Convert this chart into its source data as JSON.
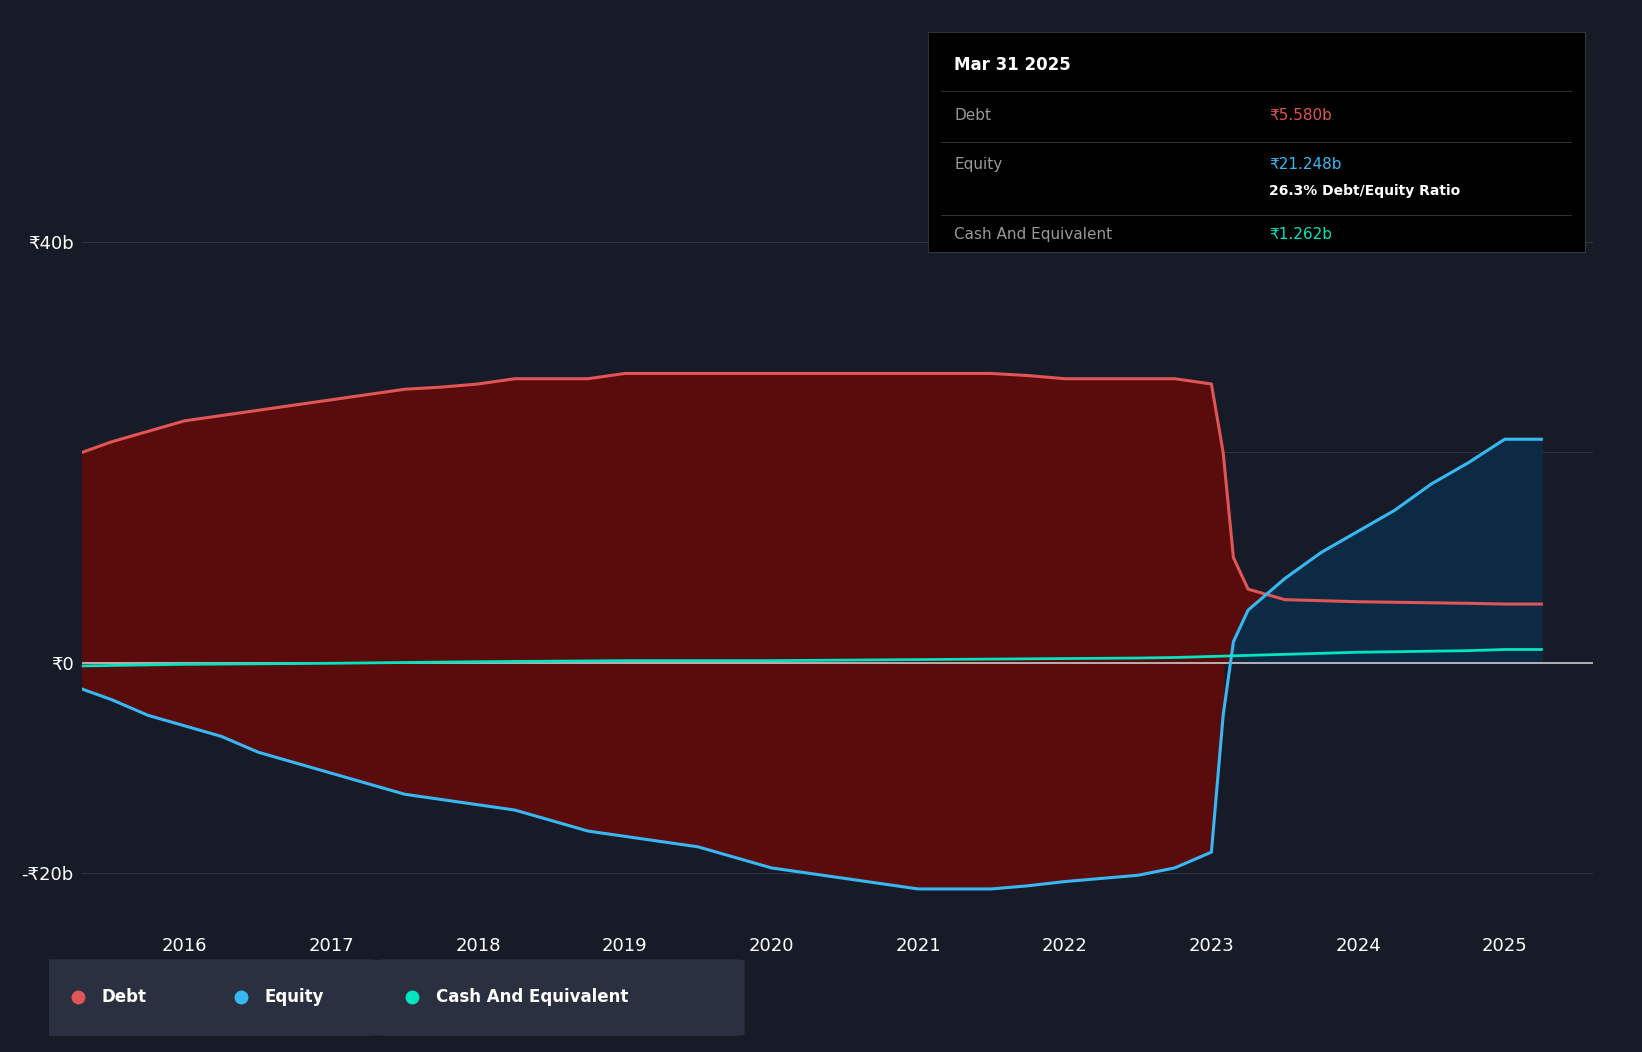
{
  "background_color": "#161b27",
  "plot_bg_color": "#161b27",
  "ylim": [
    -25000000000,
    47000000000
  ],
  "xlim_start": 2015.3,
  "xlim_end": 2025.6,
  "x_ticks": [
    2016,
    2017,
    2018,
    2019,
    2020,
    2021,
    2022,
    2023,
    2024,
    2025
  ],
  "y_ticks": [
    -20000000000,
    0,
    40000000000
  ],
  "y_tick_labels": [
    "-₹20b",
    "₹0",
    "₹40b"
  ],
  "debt_color": "#e05555",
  "equity_color": "#38b8f2",
  "cash_color": "#00e5c0",
  "debt_fill_color": "#5a0c0c",
  "equity_pos_fill_color": "#0d2a45",
  "grid_color": "#2a3444",
  "zero_line_color": "#cccccc",
  "tooltip_bg": "#000000",
  "tooltip_title": "Mar 31 2025",
  "tooltip_debt_label": "Debt",
  "tooltip_debt_value": "₹5.580b",
  "tooltip_debt_color": "#e05555",
  "tooltip_equity_label": "Equity",
  "tooltip_equity_value": "₹21.248b",
  "tooltip_equity_color": "#38b8f2",
  "tooltip_ratio": "26.3% Debt/Equity Ratio",
  "tooltip_cash_label": "Cash And Equivalent",
  "tooltip_cash_value": "₹1.262b",
  "tooltip_cash_color": "#00e5c0",
  "tooltip_sep_color": "#333333",
  "legend_items": [
    "Debt",
    "Equity",
    "Cash And Equivalent"
  ],
  "legend_colors": [
    "#e05555",
    "#38b8f2",
    "#00e5c0"
  ],
  "legend_bg": "#2a3040",
  "debt_data_x": [
    2015.3,
    2015.5,
    2015.75,
    2016.0,
    2016.25,
    2016.5,
    2016.75,
    2017.0,
    2017.25,
    2017.5,
    2017.75,
    2018.0,
    2018.25,
    2018.5,
    2018.75,
    2019.0,
    2019.25,
    2019.5,
    2019.75,
    2020.0,
    2020.25,
    2020.5,
    2020.75,
    2021.0,
    2021.25,
    2021.5,
    2021.75,
    2022.0,
    2022.25,
    2022.5,
    2022.75,
    2023.0,
    2023.08,
    2023.15,
    2023.25,
    2023.5,
    2023.75,
    2024.0,
    2024.25,
    2024.5,
    2024.75,
    2025.0,
    2025.25
  ],
  "debt_data_y": [
    20000000000.0,
    21000000000.0,
    22000000000.0,
    23000000000.0,
    23500000000.0,
    24000000000.0,
    24500000000.0,
    25000000000.0,
    25500000000.0,
    26000000000.0,
    26200000000.0,
    26500000000.0,
    27000000000.0,
    27000000000.0,
    27000000000.0,
    27500000000.0,
    27500000000.0,
    27500000000.0,
    27500000000.0,
    27500000000.0,
    27500000000.0,
    27500000000.0,
    27500000000.0,
    27500000000.0,
    27500000000.0,
    27500000000.0,
    27300000000.0,
    27000000000.0,
    27000000000.0,
    27000000000.0,
    27000000000.0,
    26500000000.0,
    20000000000.0,
    10000000000.0,
    7000000000.0,
    6000000000.0,
    5900000000.0,
    5800000000.0,
    5750000000.0,
    5700000000.0,
    5650000000.0,
    5580000000.0,
    5580000000.0
  ],
  "equity_data_x": [
    2015.3,
    2015.5,
    2015.75,
    2016.0,
    2016.25,
    2016.5,
    2016.75,
    2017.0,
    2017.25,
    2017.5,
    2017.75,
    2018.0,
    2018.25,
    2018.5,
    2018.75,
    2019.0,
    2019.25,
    2019.5,
    2019.75,
    2020.0,
    2020.25,
    2020.5,
    2020.75,
    2021.0,
    2021.25,
    2021.5,
    2021.75,
    2022.0,
    2022.25,
    2022.5,
    2022.75,
    2023.0,
    2023.08,
    2023.15,
    2023.25,
    2023.5,
    2023.75,
    2024.0,
    2024.25,
    2024.5,
    2024.75,
    2025.0,
    2025.25
  ],
  "equity_data_y": [
    -2500000000.0,
    -3500000000.0,
    -5000000000.0,
    -6000000000.0,
    -7000000000.0,
    -8500000000.0,
    -9500000000.0,
    -10500000000.0,
    -11500000000.0,
    -12500000000.0,
    -13000000000.0,
    -13500000000.0,
    -14000000000.0,
    -15000000000.0,
    -16000000000.0,
    -16500000000.0,
    -17000000000.0,
    -17500000000.0,
    -18500000000.0,
    -19500000000.0,
    -20000000000.0,
    -20500000000.0,
    -21000000000.0,
    -21500000000.0,
    -21500000000.0,
    -21500000000.0,
    -21200000000.0,
    -20800000000.0,
    -20500000000.0,
    -20200000000.0,
    -19500000000.0,
    -18000000000.0,
    -5000000000.0,
    2000000000.0,
    5000000000.0,
    8000000000.0,
    10500000000.0,
    12500000000.0,
    14500000000.0,
    17000000000.0,
    19000000000.0,
    21248000000.0,
    21248000000.0
  ],
  "cash_data_x": [
    2015.3,
    2016.0,
    2017.0,
    2018.0,
    2019.0,
    2020.0,
    2021.0,
    2022.0,
    2022.5,
    2022.75,
    2023.0,
    2023.25,
    2023.5,
    2023.75,
    2024.0,
    2024.25,
    2024.5,
    2024.75,
    2025.0,
    2025.25
  ],
  "cash_data_y": [
    -300000000.0,
    -150000000.0,
    -50000000.0,
    100000000.0,
    200000000.0,
    200000000.0,
    300000000.0,
    400000000.0,
    450000000.0,
    500000000.0,
    600000000.0,
    700000000.0,
    800000000.0,
    900000000.0,
    1000000000.0,
    1050000000.0,
    1100000000.0,
    1150000000.0,
    1262000000.0,
    1262000000.0
  ]
}
